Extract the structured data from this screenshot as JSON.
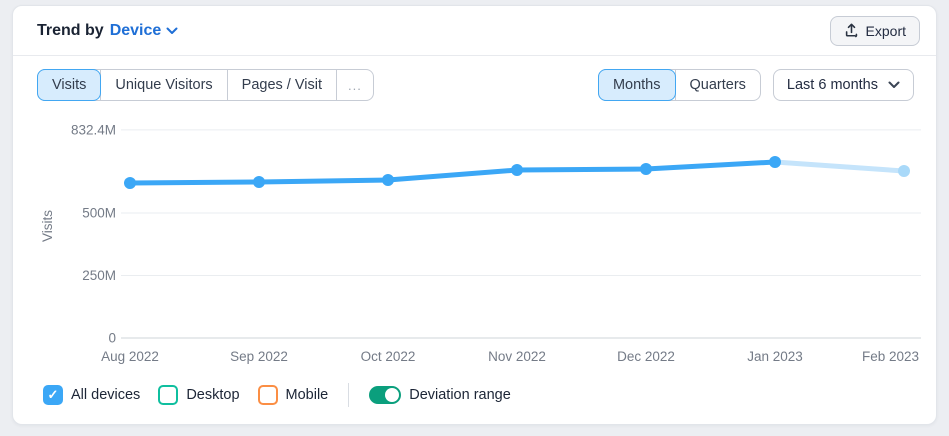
{
  "header": {
    "title_prefix": "Trend by",
    "title_dropdown": "Device",
    "export_label": "Export"
  },
  "metric_tabs": {
    "items": [
      {
        "label": "Visits",
        "selected": true
      },
      {
        "label": "Unique Visitors",
        "selected": false
      },
      {
        "label": "Pages / Visit",
        "selected": false
      }
    ],
    "more_label": "..."
  },
  "granularity_tabs": {
    "items": [
      {
        "label": "Months",
        "selected": true
      },
      {
        "label": "Quarters",
        "selected": false
      }
    ]
  },
  "range_dropdown": {
    "value": "Last 6 months"
  },
  "chart_data": {
    "type": "line",
    "title": "Trend by Device — Visits",
    "ylabel": "Visits",
    "x": [
      "Aug 2022",
      "Sep 2022",
      "Oct 2022",
      "Nov 2022",
      "Dec 2022",
      "Jan 2023",
      "Feb 2023"
    ],
    "series": [
      {
        "name": "All devices",
        "unit": "visits, millions",
        "values_millions": [
          620,
          624,
          632,
          672,
          676,
          704,
          668
        ],
        "color": "#3BA7F6",
        "provisional_last_point": true,
        "provisional_line_color": "#C5E4FB",
        "provisional_dot_color": "#A9D9F9"
      }
    ],
    "yticks": [
      {
        "label": "0",
        "value_millions": 0
      },
      {
        "label": "250M",
        "value_millions": 250
      },
      {
        "label": "500M",
        "value_millions": 500
      },
      {
        "label": "832.4M",
        "value_millions": 832.4
      }
    ],
    "ylim_millions": [
      0,
      832.4
    ],
    "grid": "horizontal",
    "legend_position": "bottom"
  },
  "legend": {
    "checkboxes": [
      {
        "label": "All devices",
        "checked": true,
        "color": "#3BA7F6"
      },
      {
        "label": "Desktop",
        "checked": false,
        "color": "#0FBF9F"
      },
      {
        "label": "Mobile",
        "checked": false,
        "color": "#FB8E44"
      }
    ],
    "toggle": {
      "label": "Deviation range",
      "on": true,
      "color": "#0B9F7D"
    }
  },
  "colors": {
    "accent_blue": "#3BA7F6",
    "selected_tab_bg": "#D7ECFD",
    "selected_tab_border": "#42A7F2",
    "link_blue": "#1F6FD6",
    "text_dark": "#1A2333",
    "text_gray": "#747B87",
    "border_gray": "#C7CCD5",
    "grid_line": "#EAEDF0",
    "axis_line": "#CFD4DA",
    "check_glyph": "✓"
  }
}
